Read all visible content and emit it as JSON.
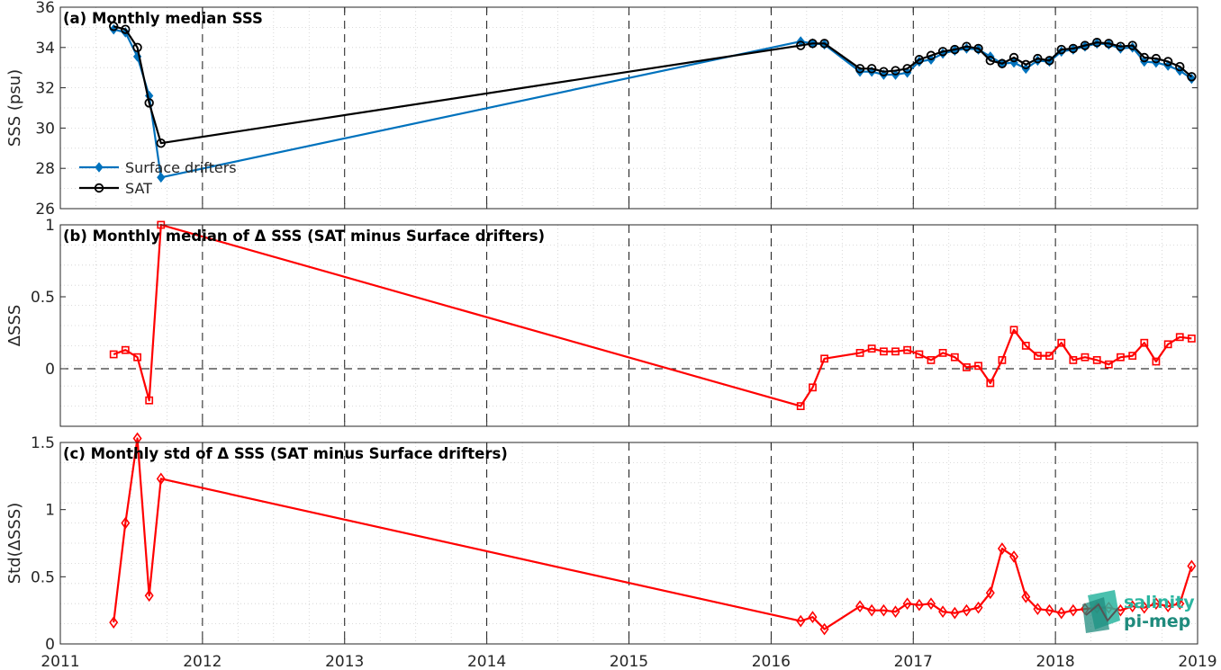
{
  "colors": {
    "drifters": "#0072bd",
    "sat": "#000000",
    "delta": "#ff0000",
    "logo": "#2bb5a0"
  },
  "logo": {
    "line1": "salinity",
    "line2": "pi-mep"
  },
  "chart_data": [
    {
      "type": "line",
      "title": "(a) Monthly median SSS",
      "ylabel": "SSS (psu)",
      "xlabel": "",
      "xlim": [
        2011,
        2019
      ],
      "ylim": [
        26,
        36
      ],
      "x_ticks": [
        "2011",
        "2012",
        "2013",
        "2014",
        "2015",
        "2016",
        "2017",
        "2018",
        "2019"
      ],
      "y_ticks": [
        "26",
        "28",
        "30",
        "32",
        "34",
        "36"
      ],
      "grid": "dotted minor grid, dashed year lines",
      "legend": "bottom-left",
      "series": [
        {
          "name": "Surface drifters",
          "marker": "filled-diamond",
          "color": "#0072bd",
          "x": [
            2011.375,
            2011.458,
            2011.542,
            2011.625,
            2011.708,
            2016.208,
            2016.292,
            2016.375,
            2016.625,
            2016.708,
            2016.792,
            2016.875,
            2016.958,
            2017.042,
            2017.125,
            2017.208,
            2017.292,
            2017.375,
            2017.458,
            2017.542,
            2017.625,
            2017.708,
            2017.792,
            2017.875,
            2017.958,
            2018.042,
            2018.125,
            2018.208,
            2018.292,
            2018.375,
            2018.458,
            2018.542,
            2018.625,
            2018.708,
            2018.792,
            2018.875,
            2018.958
          ],
          "y": [
            34.9,
            34.75,
            33.55,
            31.6,
            27.55,
            34.3,
            34.2,
            34.15,
            32.8,
            32.8,
            32.65,
            32.65,
            32.75,
            33.3,
            33.4,
            33.7,
            33.85,
            33.95,
            33.9,
            33.55,
            33.2,
            33.25,
            32.95,
            33.35,
            33.3,
            33.8,
            33.9,
            34.05,
            34.2,
            34.15,
            33.95,
            34.0,
            33.3,
            33.25,
            33.1,
            32.85,
            32.45
          ]
        },
        {
          "name": "SAT",
          "marker": "open-circle",
          "color": "#000000",
          "x": [
            2011.375,
            2011.458,
            2011.542,
            2011.625,
            2011.708,
            2016.208,
            2016.292,
            2016.375,
            2016.625,
            2016.708,
            2016.792,
            2016.875,
            2016.958,
            2017.042,
            2017.125,
            2017.208,
            2017.292,
            2017.375,
            2017.458,
            2017.542,
            2017.625,
            2017.708,
            2017.792,
            2017.875,
            2017.958,
            2018.042,
            2018.125,
            2018.208,
            2018.292,
            2018.375,
            2018.458,
            2018.542,
            2018.625,
            2018.708,
            2018.792,
            2018.875,
            2018.958
          ],
          "y": [
            35.05,
            34.9,
            34.0,
            31.25,
            29.25,
            34.1,
            34.2,
            34.2,
            32.95,
            32.95,
            32.8,
            32.85,
            32.95,
            33.4,
            33.6,
            33.8,
            33.9,
            34.05,
            33.95,
            33.35,
            33.2,
            33.5,
            33.15,
            33.45,
            33.35,
            33.9,
            33.95,
            34.1,
            34.25,
            34.2,
            34.05,
            34.1,
            33.5,
            33.45,
            33.3,
            33.05,
            32.55
          ]
        }
      ]
    },
    {
      "type": "line",
      "title": "(b) Monthly median of Δ SSS (SAT minus Surface drifters)",
      "ylabel": "ΔSSS",
      "xlabel": "",
      "xlim": [
        2011,
        2019
      ],
      "ylim": [
        -0.4,
        1
      ],
      "y_ticks": [
        "0",
        "0.5",
        "1"
      ],
      "zero_line": "dashed",
      "series": [
        {
          "marker": "open-square",
          "color": "#ff0000",
          "x": [
            2011.375,
            2011.458,
            2011.542,
            2011.625,
            2011.708,
            2016.208,
            2016.292,
            2016.375,
            2016.625,
            2016.708,
            2016.792,
            2016.875,
            2016.958,
            2017.042,
            2017.125,
            2017.208,
            2017.292,
            2017.375,
            2017.458,
            2017.542,
            2017.625,
            2017.708,
            2017.792,
            2017.875,
            2017.958,
            2018.042,
            2018.125,
            2018.208,
            2018.292,
            2018.375,
            2018.458,
            2018.542,
            2018.625,
            2018.708,
            2018.792,
            2018.875,
            2018.958
          ],
          "y": [
            0.1,
            0.13,
            0.08,
            -0.22,
            1.0,
            -0.26,
            -0.13,
            0.07,
            0.11,
            0.14,
            0.12,
            0.12,
            0.13,
            0.1,
            0.06,
            0.11,
            0.08,
            0.01,
            0.02,
            -0.1,
            0.06,
            0.27,
            0.16,
            0.09,
            0.09,
            0.18,
            0.06,
            0.08,
            0.06,
            0.03,
            0.08,
            0.09,
            0.18,
            0.05,
            0.17,
            0.22,
            0.21
          ]
        }
      ]
    },
    {
      "type": "line",
      "title": "(c) Monthly std of Δ SSS (SAT minus Surface drifters)",
      "ylabel": "Std(ΔSSS)",
      "xlabel": "",
      "xlim": [
        2011,
        2019
      ],
      "ylim": [
        0,
        1.5
      ],
      "y_ticks": [
        "0",
        "0.5",
        "1",
        "1.5"
      ],
      "series": [
        {
          "marker": "open-diamond",
          "color": "#ff0000",
          "x": [
            2011.375,
            2011.458,
            2011.542,
            2011.625,
            2011.708,
            2016.208,
            2016.292,
            2016.375,
            2016.625,
            2016.708,
            2016.792,
            2016.875,
            2016.958,
            2017.042,
            2017.125,
            2017.208,
            2017.292,
            2017.375,
            2017.458,
            2017.542,
            2017.625,
            2017.708,
            2017.792,
            2017.875,
            2017.958,
            2018.042,
            2018.125,
            2018.208,
            2018.292,
            2018.375,
            2018.458,
            2018.542,
            2018.625,
            2018.708,
            2018.792,
            2018.875,
            2018.958
          ],
          "y": [
            0.16,
            0.9,
            1.53,
            0.36,
            1.23,
            0.17,
            0.2,
            0.11,
            0.28,
            0.25,
            0.25,
            0.24,
            0.3,
            0.29,
            0.3,
            0.24,
            0.23,
            0.25,
            0.27,
            0.38,
            0.71,
            0.65,
            0.35,
            0.26,
            0.25,
            0.23,
            0.25,
            0.26,
            0.27,
            0.27,
            0.25,
            0.28,
            0.27,
            0.3,
            0.28,
            0.3,
            0.58
          ]
        }
      ]
    }
  ]
}
